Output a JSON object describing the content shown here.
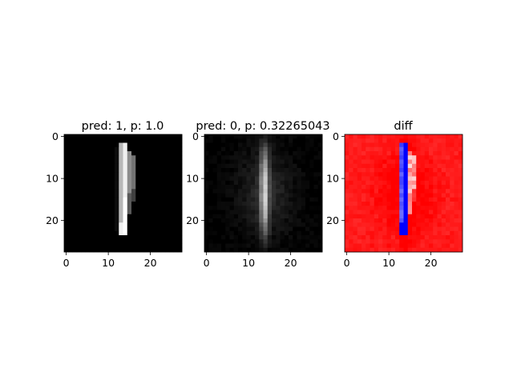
{
  "chart_data": [
    {
      "type": "heatmap",
      "title": "pred: 1, p: 1.0",
      "colormap": "gray",
      "xlim": [
        -0.5,
        27.5
      ],
      "ylim": [
        27.5,
        -0.5
      ],
      "xticks": [
        0,
        10,
        20
      ],
      "yticks": [
        0,
        10,
        20
      ],
      "digit": "1",
      "pred": 1,
      "p": 1.0
    },
    {
      "type": "heatmap",
      "title": "pred: 0, p: 0.32265043",
      "colormap": "gray",
      "xlim": [
        -0.5,
        27.5
      ],
      "ylim": [
        27.5,
        -0.5
      ],
      "xticks": [
        0,
        10,
        20
      ],
      "yticks": [
        0,
        10,
        20
      ],
      "pred": 0,
      "p": 0.32265043
    },
    {
      "type": "heatmap",
      "title": "diff",
      "colormap": "bwr",
      "xlim": [
        -0.5,
        27.5
      ],
      "ylim": [
        27.5,
        -0.5
      ],
      "xticks": [
        0,
        10,
        20
      ],
      "yticks": [
        0,
        10,
        20
      ]
    }
  ]
}
